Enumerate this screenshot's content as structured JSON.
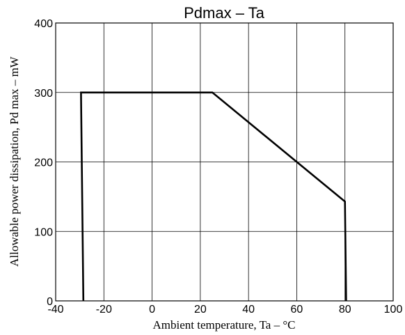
{
  "chart_data": {
    "type": "line",
    "title": "Pdmax  –  Ta",
    "xlabel": "Ambient temperature, Ta – °C",
    "ylabel": "Allowable power dissipation, Pd max – mW",
    "xlim": [
      -40,
      100
    ],
    "ylim": [
      0,
      400
    ],
    "xticks": [
      -40,
      -20,
      0,
      20,
      40,
      60,
      80,
      100
    ],
    "yticks": [
      0,
      100,
      200,
      300,
      400
    ],
    "x_tick_labels": [
      "-40",
      "-20",
      "0",
      "20",
      "40",
      "60",
      "80",
      "100"
    ],
    "y_tick_labels": [
      "0",
      "100",
      "200",
      "300",
      "400"
    ],
    "grid": true,
    "series": [
      {
        "x": [
          -28.5,
          -29.5,
          25,
          80,
          80.5
        ],
        "y": [
          0,
          300,
          300,
          143,
          0
        ]
      }
    ]
  }
}
